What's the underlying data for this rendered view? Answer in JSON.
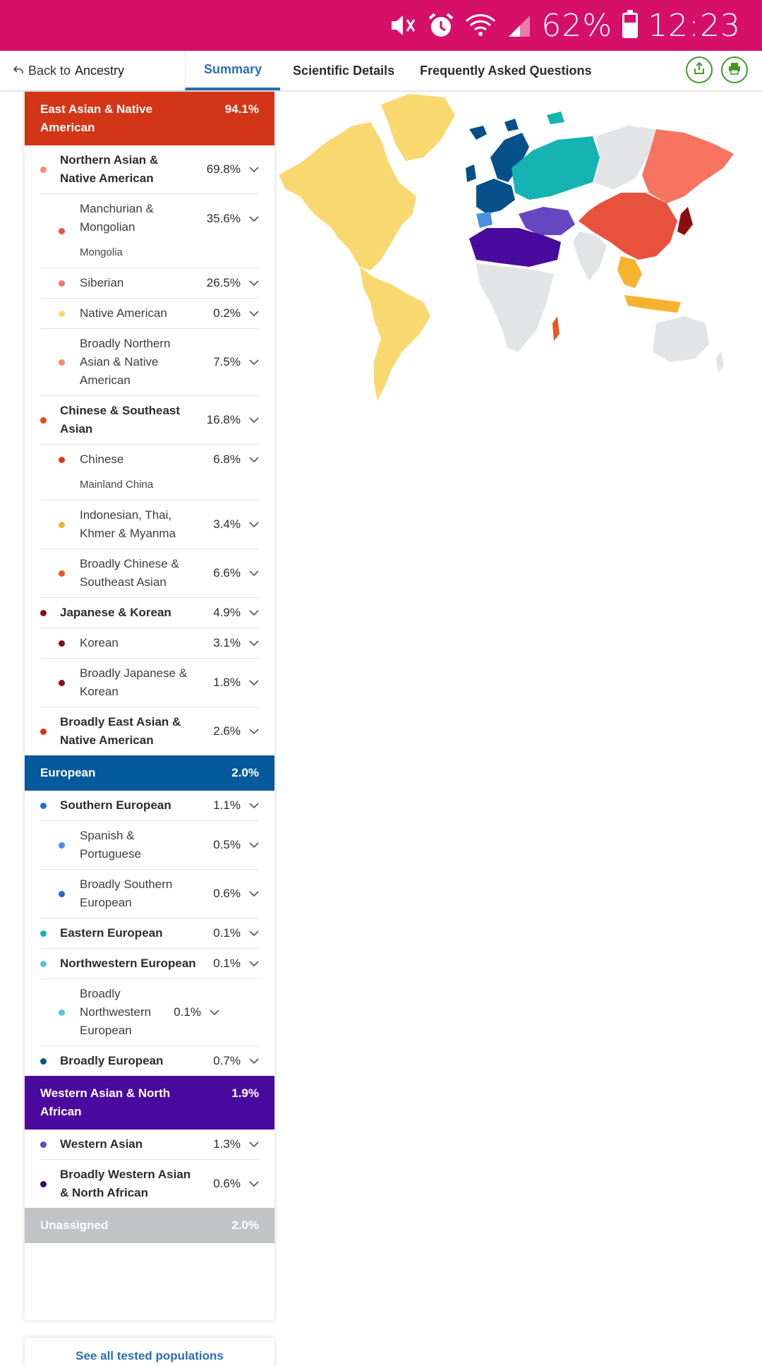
{
  "status_bar": {
    "battery": "62%",
    "time": "12:23",
    "icons": [
      "mute-icon",
      "alarm-icon",
      "wifi-icon",
      "signal-icon",
      "battery-icon"
    ],
    "color": "#d60f6b"
  },
  "nav": {
    "back_prefix": "Back to",
    "back_strong": "Ancestry",
    "tabs": [
      {
        "label": "Summary",
        "active": true
      },
      {
        "label": "Scientific Details",
        "active": false
      },
      {
        "label": "Frequently Asked Questions",
        "active": false
      }
    ],
    "actions": [
      "share-icon",
      "print-icon"
    ]
  },
  "categories": {
    "east_asian": {
      "name": "East Asian & Native American",
      "pct": "94.1%",
      "color": "#d33616"
    },
    "european": {
      "name": "European",
      "pct": "2.0%",
      "color": "#045a9a"
    },
    "western_asian": {
      "name": "Western Asian & North African",
      "pct": "1.9%",
      "color": "#4b0a9e"
    },
    "unassigned": {
      "name": "Unassigned",
      "pct": "2.0%",
      "color": "#c1c3c5"
    }
  },
  "rows": {
    "n_asian": {
      "name": "Northern Asian & Native American",
      "pct": "69.8%"
    },
    "manchurian": {
      "name": "Manchurian & Mongolian",
      "sub": "Mongolia",
      "pct": "35.6%"
    },
    "siberian": {
      "name": "Siberian",
      "pct": "26.5%"
    },
    "native_american": {
      "name": "Native American",
      "pct": "0.2%"
    },
    "broad_n_asian": {
      "name": "Broadly Northern Asian & Native American",
      "pct": "7.5%"
    },
    "chinese_se": {
      "name": "Chinese & Southeast Asian",
      "pct": "16.8%"
    },
    "chinese": {
      "name": "Chinese",
      "sub": "Mainland China",
      "pct": "6.8%"
    },
    "indonesian": {
      "name": "Indonesian, Thai, Khmer & Myanma",
      "pct": "3.4%"
    },
    "broad_chinese": {
      "name": "Broadly Chinese & Southeast Asian",
      "pct": "6.6%"
    },
    "japanese_korean": {
      "name": "Japanese & Korean",
      "pct": "4.9%"
    },
    "korean": {
      "name": "Korean",
      "pct": "3.1%"
    },
    "broad_japanese": {
      "name": "Broadly Japanese & Korean",
      "pct": "1.8%"
    },
    "broad_east_asian": {
      "name": "Broadly East Asian & Native American",
      "pct": "2.6%"
    },
    "s_european": {
      "name": "Southern European",
      "pct": "1.1%"
    },
    "spanish": {
      "name": "Spanish & Portuguese",
      "pct": "0.5%"
    },
    "broad_s_european": {
      "name": "Broadly Southern European",
      "pct": "0.6%"
    },
    "e_european": {
      "name": "Eastern European",
      "pct": "0.1%"
    },
    "nw_european": {
      "name": "Northwestern European",
      "pct": "0.1%"
    },
    "broad_nw_european": {
      "name": "Broadly Northwestern European",
      "pct": "0.1%"
    },
    "broad_european": {
      "name": "Broadly European",
      "pct": "0.7%"
    },
    "w_asian": {
      "name": "Western Asian",
      "pct": "1.3%"
    },
    "broad_w_asian": {
      "name": "Broadly Western Asian & North African",
      "pct": "0.6%"
    }
  },
  "colors": {
    "manchurian": "#e8523d",
    "siberian": "#f5735f",
    "native_american": "#f9d870",
    "broad_n_asian": "#f88a72",
    "chinese_se": "#e64a19",
    "chinese": "#dd3a16",
    "indonesian": "#f7b22f",
    "broad_chinese": "#e8571e",
    "japanese_korean": "#8a0f0f",
    "s_european": "#2270c4",
    "spanish": "#4a8fe0",
    "e_european": "#15b3b3",
    "nw_european": "#58c3e6",
    "broad_european": "#06518a",
    "w_asian": "#6547c2",
    "broad_w_asian": "#3a0a7a"
  },
  "footer_link": "See all tested populations"
}
